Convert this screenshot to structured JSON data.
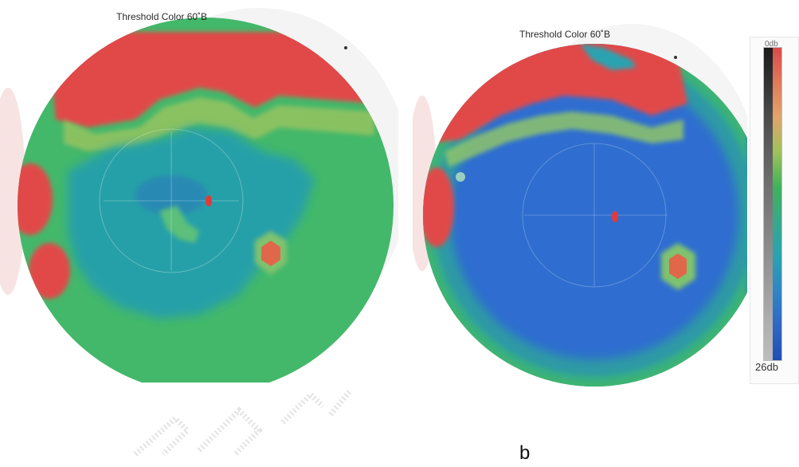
{
  "panels": {
    "left": {
      "title": "Threshold Color 60˚B"
    },
    "right": {
      "title": "Threshold Color 60˚B"
    }
  },
  "legend": {
    "top_label": "0db",
    "bottom_label": "26db",
    "colors_left": [
      "#1b1b1b",
      "#333333",
      "#4c4c4c",
      "#5f5f5f",
      "#707070",
      "#7f7f7f",
      "#8f8f8f",
      "#9f9f9f",
      "#b0b0b0",
      "#bdbdbd"
    ],
    "colors_right": [
      "#d94a4a",
      "#e17a5a",
      "#e2a46a",
      "#9ec25a",
      "#3fb35a",
      "#36a98a",
      "#2aa3b0",
      "#2f86c6",
      "#2f67c4",
      "#1f4fb3"
    ]
  },
  "caption": "b",
  "colors": {
    "red": "#e14a4a",
    "green": "#43b86a",
    "teal": "#25a0a8",
    "blue": "#2f6ed0",
    "orange": "#e08a4a"
  }
}
